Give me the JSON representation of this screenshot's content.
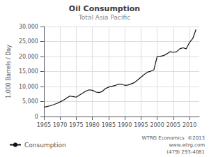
{
  "chart_data": {
    "type": "line",
    "title": "Oil Consumption",
    "subtitle": "Total Asia Pacific",
    "y_label": "1,000 Barrels / Day",
    "annotations": [
      "WTRG Economics  ©2013",
      "www.wtrg.com",
      "(479) 293-4081"
    ],
    "x": [
      1965,
      1966,
      1967,
      1968,
      1969,
      1970,
      1971,
      1972,
      1973,
      1974,
      1975,
      1976,
      1977,
      1978,
      1979,
      1980,
      1981,
      1982,
      1983,
      1984,
      1985,
      1986,
      1987,
      1988,
      1989,
      1990,
      1991,
      1992,
      1993,
      1994,
      1995,
      1996,
      1997,
      1998,
      1999,
      2000,
      2001,
      2002,
      2003,
      2004,
      2005,
      2006,
      2007,
      2008,
      2009,
      2010,
      2011,
      2012
    ],
    "series": [
      {
        "name": "Consumption",
        "color": "#111111",
        "values": [
          3100,
          3350,
          3600,
          3950,
          4350,
          4850,
          5400,
          6100,
          6800,
          6650,
          6450,
          7150,
          7800,
          8500,
          8900,
          8750,
          8200,
          8000,
          8300,
          9300,
          9800,
          10100,
          10300,
          10800,
          10800,
          10400,
          10500,
          10900,
          11300,
          12200,
          13100,
          14000,
          14800,
          15100,
          15600,
          20000,
          20100,
          20300,
          20900,
          21600,
          21400,
          21600,
          22600,
          22900,
          22600,
          24700,
          26000,
          29000
        ]
      }
    ],
    "xlim": [
      1965,
      2013
    ],
    "xticks": [
      1965,
      1970,
      1975,
      1980,
      1985,
      1990,
      1995,
      2000,
      2005,
      2010
    ],
    "ylim": [
      0,
      30000
    ],
    "yticks": [
      0,
      {
        "value": 5000,
        "label": "5,000"
      },
      {
        "value": 10000,
        "label": "10,000"
      },
      {
        "value": 15000,
        "label": "15,000"
      },
      {
        "value": 20000,
        "label": "20,000"
      },
      {
        "value": 25000,
        "label": "25,000"
      },
      {
        "value": 30000,
        "label": "30,000"
      }
    ],
    "grid": true,
    "legend": "lower left"
  }
}
